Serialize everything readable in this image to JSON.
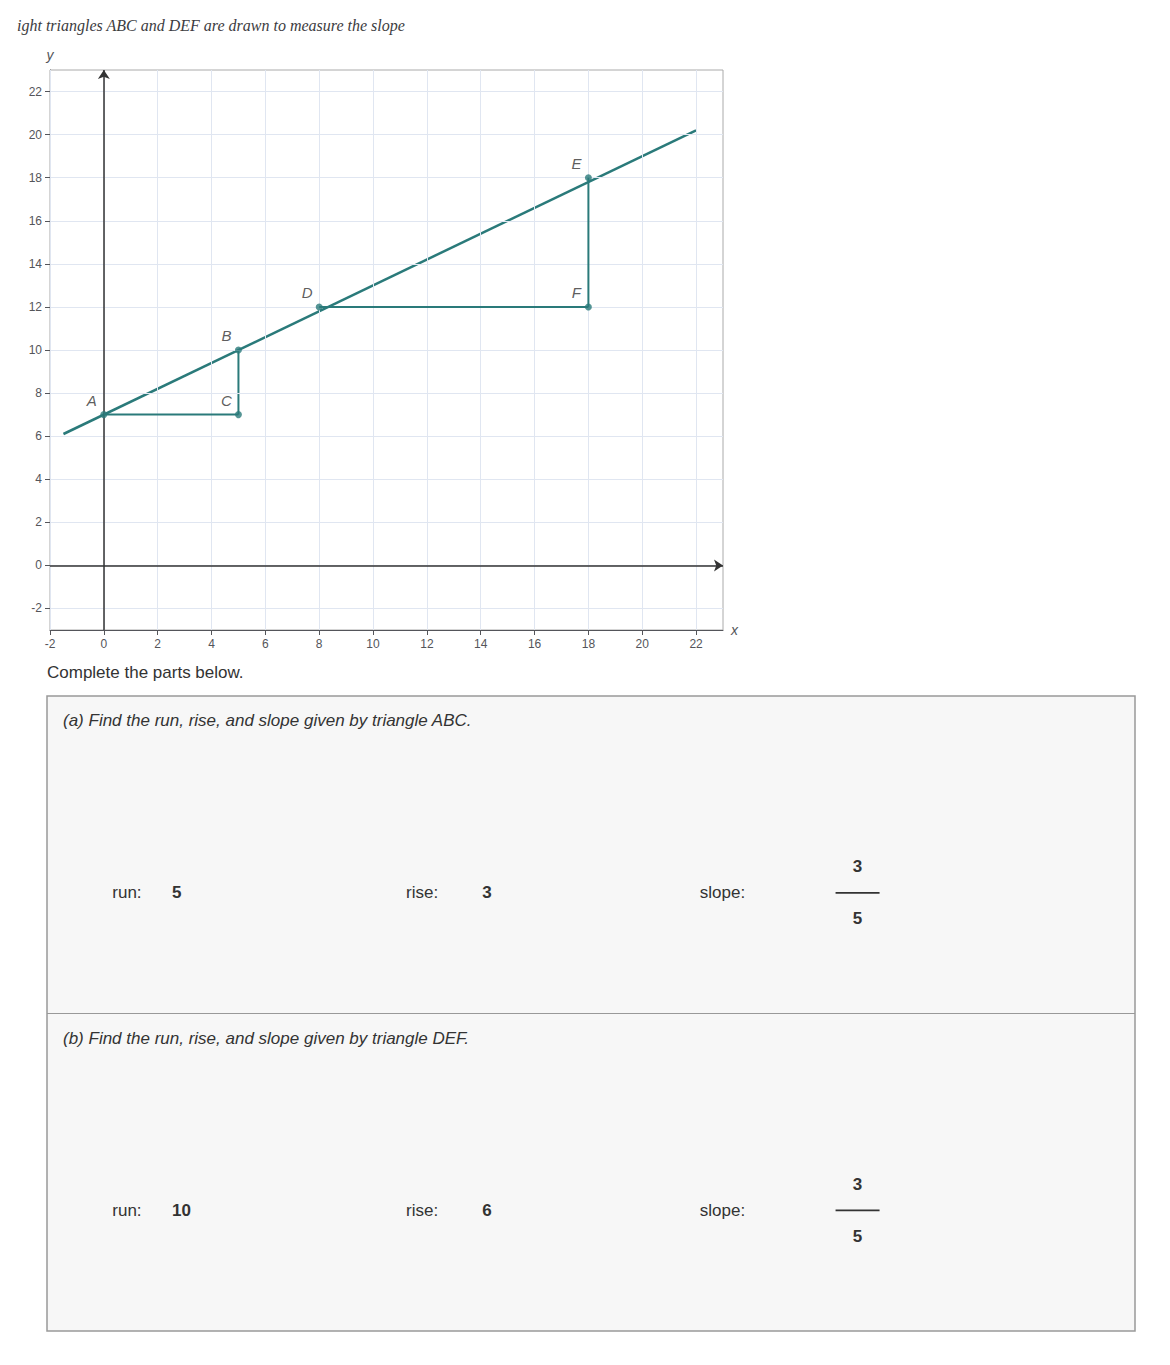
{
  "chart_data": {
    "type": "line",
    "title": "ight triangles ABC and DEF are drawn to measure the slope",
    "x_label": "x",
    "y_label": "y",
    "xlim": [
      -2,
      23
    ],
    "ylim": [
      -3,
      23
    ],
    "xticks": [
      -2,
      0,
      2,
      4,
      6,
      8,
      10,
      12,
      14,
      16,
      18,
      20,
      22
    ],
    "yticks": [
      -2,
      0,
      2,
      4,
      6,
      8,
      10,
      12,
      14,
      16,
      18,
      20,
      22
    ],
    "grid": true,
    "series": [
      {
        "type": "line",
        "color": "#2a7a7a",
        "x": [
          -1.5,
          22
        ],
        "values": [
          6.1,
          20.2
        ]
      },
      {
        "type": "line",
        "color": "#2a7a7a",
        "x": [
          5,
          5
        ],
        "values": [
          10,
          7
        ]
      },
      {
        "type": "line",
        "color": "#2a7a7a",
        "x": [
          0,
          5
        ],
        "values": [
          7,
          7
        ]
      },
      {
        "type": "line",
        "color": "#2a7a7a",
        "x": [
          8,
          18
        ],
        "values": [
          12,
          12
        ]
      },
      {
        "type": "line",
        "color": "#2a7a7a",
        "x": [
          18,
          18
        ],
        "values": [
          18,
          12
        ]
      },
      {
        "type": "scatter",
        "color": "#2a7a7a",
        "x": [
          0,
          5,
          5,
          8,
          18,
          18
        ],
        "values": [
          7,
          10,
          7,
          12,
          18,
          12
        ]
      }
    ],
    "annotations": [
      {
        "text": "A",
        "x": 0,
        "y": 7
      },
      {
        "text": "B",
        "x": 5,
        "y": 10
      },
      {
        "text": "C",
        "x": 5,
        "y": 7
      },
      {
        "text": "D",
        "x": 8,
        "y": 12
      },
      {
        "text": "E",
        "x": 18,
        "y": 18
      },
      {
        "text": "F",
        "x": 18,
        "y": 12
      }
    ],
    "intro": "Complete the parts below.",
    "answer_labels": [
      "run:",
      "rise:",
      "slope:"
    ],
    "parts": [
      {
        "title": "(a) Find the run, rise, and slope given by triangle ABC.",
        "run": 5,
        "rise": 3,
        "slope": {
          "numerator": 3,
          "denominator": 5
        }
      },
      {
        "title": "(b) Find the run, rise, and slope given by triangle DEF.",
        "run": 10,
        "rise": 6,
        "slope": {
          "numerator": 3,
          "denominator": 5
        }
      }
    ]
  }
}
